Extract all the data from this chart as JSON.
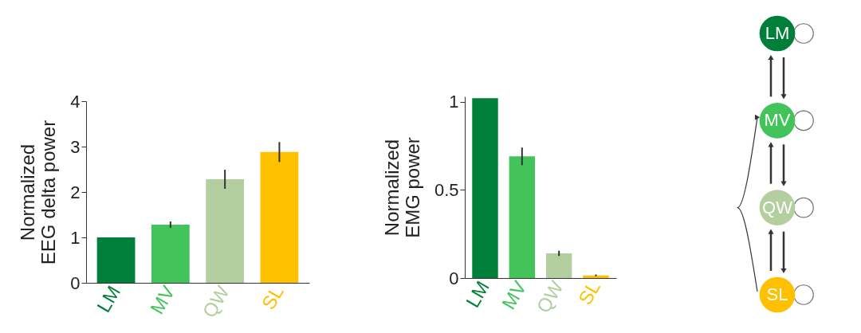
{
  "chart_data": [
    {
      "type": "bar",
      "ylabel": "Normalized EEG delta power",
      "categories": [
        "LM",
        "MV",
        "QW",
        "SL"
      ],
      "values": [
        1.0,
        1.28,
        2.28,
        2.88
      ],
      "errors": [
        null,
        0.07,
        0.21,
        0.22
      ],
      "colors": [
        "#007f3a",
        "#42c45a",
        "#b3cfa0",
        "#ffc000"
      ],
      "ylim": [
        0,
        4
      ],
      "yticks": [
        0,
        1,
        2,
        3,
        4
      ],
      "grid": false,
      "legend": false
    },
    {
      "type": "bar",
      "ylabel": "Normalized EMG power",
      "categories": [
        "LM",
        "MV",
        "QW",
        "SL"
      ],
      "values": [
        1.02,
        0.69,
        0.14,
        0.015
      ],
      "errors": [
        null,
        0.05,
        0.015,
        0.005
      ],
      "colors": [
        "#007f3a",
        "#42c45a",
        "#b3cfa0",
        "#ffc000"
      ],
      "ylim": [
        0,
        1.03
      ],
      "yticks": [
        0,
        0.5,
        1
      ],
      "grid": false,
      "legend": false
    },
    {
      "type": "other",
      "categories": [
        "LM",
        "MV",
        "QW",
        "SL"
      ],
      "colors": [
        "#007f3a",
        "#42c45a",
        "#b3cfa0",
        "#ffc000"
      ]
    }
  ]
}
